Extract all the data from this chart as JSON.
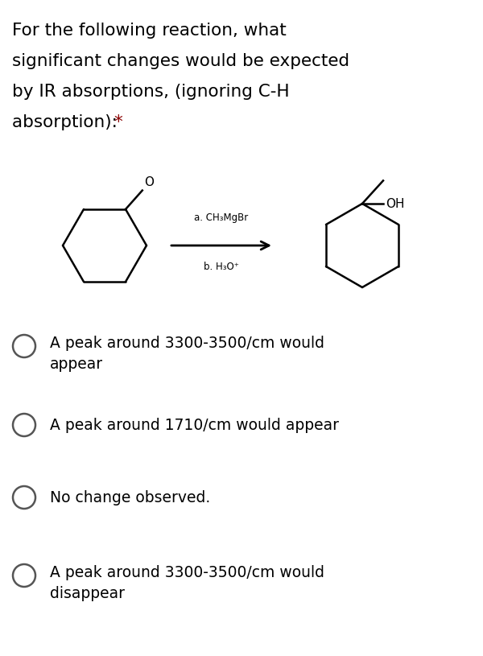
{
  "bg_color": "#ffffff",
  "title_lines": [
    "For the following reaction, what",
    "significant changes would be expected",
    "by IR absorptions, (ignoring C-H",
    "absorption): "
  ],
  "star_text": "*",
  "title_color": "#000000",
  "title_fontsize": 15.5,
  "star_color": "#8B0000",
  "reaction_label_a": "a. CH₃MgBr",
  "reaction_label_b": "b. H₃O⁺",
  "choices": [
    "A peak around 3300-3500/cm would\nappear",
    "A peak around 1710/cm would appear",
    "No change observed.",
    "A peak around 3300-3500/cm would\ndisappear"
  ],
  "choice_fontsize": 13.5,
  "circle_color": "#555555",
  "text_color": "#000000"
}
